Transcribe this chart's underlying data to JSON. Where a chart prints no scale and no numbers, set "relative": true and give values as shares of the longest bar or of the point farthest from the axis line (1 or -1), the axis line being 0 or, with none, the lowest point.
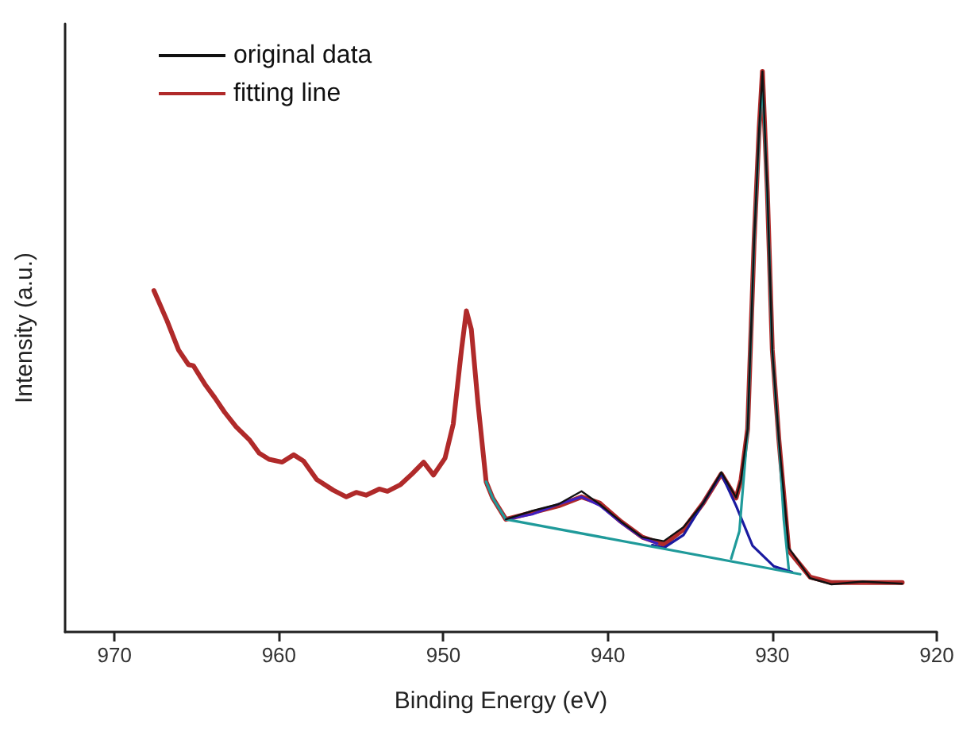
{
  "chart_data": {
    "type": "line",
    "xlabel": "Binding Energy (eV)",
    "ylabel": "Intensity (a.u.)",
    "relative": true,
    "xlim": [
      973,
      920
    ],
    "xticks": [
      970,
      960,
      950,
      940,
      930,
      920
    ],
    "legend": "top left",
    "grid": false,
    "marker": "none",
    "line_style": "solid",
    "series": [
      {
        "name": "original data",
        "color": "#111111",
        "x": [
          946.2,
          944.6,
          943.0,
          941.6,
          940.5,
          939.2,
          937.9,
          936.6,
          935.4,
          934.2,
          933.1,
          932.2,
          931.9,
          931.5,
          931.1,
          930.8,
          930.6,
          930.3,
          930.0,
          929.6,
          929.0,
          927.7,
          926.4,
          924.5,
          922.1
        ],
        "values": [
          0.201,
          0.216,
          0.228,
          0.251,
          0.228,
          0.197,
          0.169,
          0.162,
          0.187,
          0.23,
          0.285,
          0.24,
          0.272,
          0.362,
          0.701,
          0.898,
          1.0,
          0.785,
          0.503,
          0.343,
          0.15,
          0.096,
          0.085,
          0.09,
          0.086
        ]
      },
      {
        "name": "fitting line",
        "color": "#b02a2a",
        "x": [
          967.6,
          966.8,
          966.1,
          965.5,
          965.2,
          964.5,
          963.9,
          963.3,
          962.6,
          961.8,
          961.2,
          960.6,
          959.8,
          959.1,
          958.5,
          957.7,
          956.7,
          955.9,
          955.3,
          954.7,
          953.9,
          953.4,
          952.6,
          951.9,
          951.2,
          950.6,
          949.9,
          949.4,
          948.9,
          948.6,
          948.3,
          947.9,
          947.4,
          947.0,
          946.2,
          944.6,
          943.0,
          941.6,
          940.5,
          939.2,
          937.9,
          936.6,
          935.4,
          934.2,
          933.1,
          932.2,
          931.9,
          931.5,
          931.1,
          930.8,
          930.6,
          930.3,
          930.0,
          929.6,
          929.0,
          927.7,
          926.4,
          924.5,
          922.1
        ],
        "values": [
          0.609,
          0.555,
          0.503,
          0.477,
          0.475,
          0.442,
          0.418,
          0.392,
          0.366,
          0.343,
          0.319,
          0.308,
          0.303,
          0.316,
          0.305,
          0.272,
          0.253,
          0.241,
          0.249,
          0.244,
          0.255,
          0.251,
          0.263,
          0.282,
          0.303,
          0.28,
          0.31,
          0.371,
          0.503,
          0.573,
          0.54,
          0.409,
          0.268,
          0.239,
          0.201,
          0.213,
          0.225,
          0.241,
          0.23,
          0.197,
          0.169,
          0.156,
          0.183,
          0.23,
          0.282,
          0.239,
          0.272,
          0.362,
          0.701,
          0.898,
          1.0,
          0.785,
          0.503,
          0.343,
          0.145,
          0.098,
          0.088,
          0.088,
          0.088
        ]
      },
      {
        "color": "#4020c0",
        "x": [
          946.2,
          944.6,
          943.0,
          941.6,
          940.5,
          939.2,
          937.9,
          937.0
        ],
        "values": [
          0.201,
          0.21,
          0.228,
          0.241,
          0.226,
          0.195,
          0.168,
          0.158
        ]
      },
      {
        "color": "#1a1aa0",
        "x": [
          937.3,
          936.6,
          935.4,
          934.2,
          933.1,
          932.2,
          931.2,
          929.9,
          928.8
        ],
        "values": [
          0.155,
          0.15,
          0.173,
          0.23,
          0.282,
          0.225,
          0.154,
          0.117,
          0.107
        ]
      },
      {
        "color": "#1f9a9a",
        "x": [
          932.5,
          932.0,
          931.5,
          931.1,
          930.8,
          930.6,
          930.3,
          930.0,
          929.6,
          929.3,
          929.0
        ],
        "values": [
          0.131,
          0.18,
          0.36,
          0.7,
          0.89,
          0.985,
          0.78,
          0.5,
          0.34,
          0.2,
          0.112
        ]
      },
      {
        "color": "#1f9a9a",
        "x": [
          947.4,
          947.0,
          946.2,
          928.3
        ],
        "values": [
          0.268,
          0.239,
          0.201,
          0.103
        ]
      }
    ]
  }
}
